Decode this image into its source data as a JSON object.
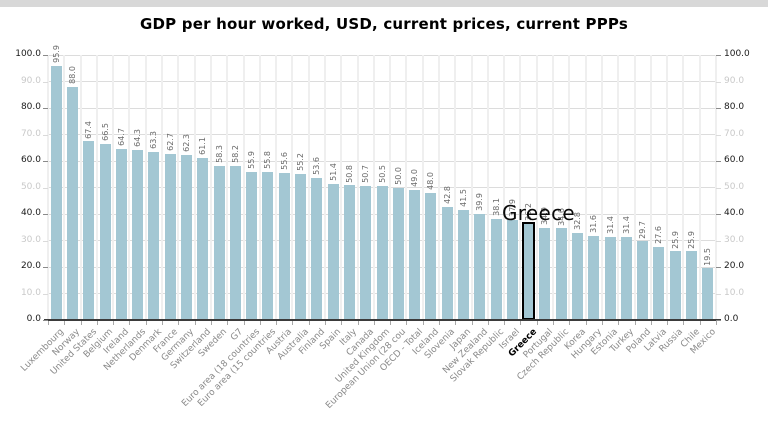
{
  "page": {
    "top_strip_color": "#d8d8d8",
    "background": "#ffffff"
  },
  "chart_data": {
    "type": "bar",
    "title": "GDP per hour worked, USD, current prices, current PPPs",
    "categories": [
      "Luxembourg",
      "Norway",
      "United States",
      "Belgium",
      "Ireland",
      "Netherlands",
      "Denmark",
      "France",
      "Germany",
      "Switzerland",
      "Sweden",
      "G7",
      "Euro area (18 countries",
      "Euro area (15 countries",
      "Austria",
      "Australia",
      "Finland",
      "Spain",
      "Italy",
      "Canada",
      "United Kingdom",
      "European Union (28 cou",
      "OECD - Total",
      "Iceland",
      "Slovenia",
      "Japan",
      "New Zealand",
      "Slovak Republic",
      "Israel",
      "Greece",
      "Portugal",
      "Czech Republic",
      "Korea",
      "Hungary",
      "Estonia",
      "Turkey",
      "Poland",
      "Latvia",
      "Russia",
      "Chile",
      "Mexico"
    ],
    "values": [
      95.9,
      88.0,
      67.4,
      66.5,
      64.7,
      64.3,
      63.3,
      62.7,
      62.3,
      61.1,
      58.3,
      58.2,
      55.9,
      55.8,
      55.6,
      55.2,
      53.6,
      51.4,
      50.8,
      50.7,
      50.5,
      50.0,
      49.0,
      48.0,
      42.8,
      41.5,
      39.9,
      38.1,
      37.9,
      36.2,
      34.9,
      34.6,
      32.8,
      31.6,
      31.4,
      31.4,
      29.7,
      27.6,
      25.9,
      25.9,
      19.5
    ],
    "xlabel": "",
    "ylabel": "",
    "ylim": [
      0,
      100
    ],
    "ytick_step": 10,
    "yticks_dark": [
      0,
      20,
      40,
      60,
      80,
      100
    ],
    "grid": "horizontal+vertical",
    "legend": "none",
    "value_labels": true,
    "highlight_category": "Greece",
    "annotation": {
      "text": "Greece"
    },
    "bar_color": "#a3c7d3",
    "highlight_outline_color": "#000000",
    "value_label_color": "#6a6a6a",
    "axis_label_dark_color": "#1a1a1a",
    "axis_label_light_color": "#c9c9c9",
    "category_label_color": "#8a8a8a"
  }
}
